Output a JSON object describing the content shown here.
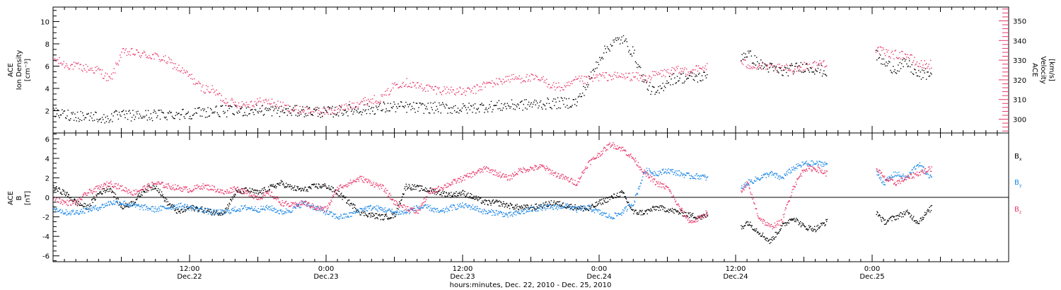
{
  "chart_data": [
    {
      "type": "scatter",
      "panel": "top",
      "ylabel_left": [
        "ACE",
        "Ion Density",
        "[cm⁻³]"
      ],
      "ylabel_right": [
        "ACE",
        "Velocity",
        "[km/s]"
      ],
      "x_range_hours": [
        0,
        84
      ],
      "ylim_left": [
        0,
        11.3
      ],
      "yticks_left": [
        2,
        4,
        6,
        8,
        10
      ],
      "ylim_right": [
        293,
        357
      ],
      "yticks_right": [
        300,
        310,
        320,
        330,
        340,
        350
      ],
      "grid": false,
      "gaps_hours": [
        [
          57.5,
          60.4
        ],
        [
          68.0,
          72.3
        ],
        [
          77.3,
          84
        ]
      ],
      "colors": {
        "density": "#000000",
        "velocity": "#e8376a"
      },
      "series": [
        {
          "name": "Ion Density",
          "axis": "left",
          "color": "#000000",
          "x": [
            0,
            2,
            4,
            4.5,
            5,
            6,
            8,
            10,
            12,
            14,
            16,
            18,
            20,
            22,
            24,
            26,
            28,
            30,
            32,
            34,
            36,
            38,
            40,
            42,
            44,
            46,
            47,
            48,
            49,
            50,
            51,
            52,
            53,
            54,
            55,
            56,
            57.4,
            60.5,
            61,
            62,
            63,
            64,
            65,
            66,
            67,
            67.9,
            72.4,
            73,
            74,
            75,
            76,
            77.2
          ],
          "values": [
            1.8,
            1.6,
            1.5,
            1.2,
            1.5,
            1.6,
            1.6,
            1.7,
            1.8,
            2.0,
            2.0,
            2.1,
            2.0,
            2.0,
            1.9,
            2.1,
            2.2,
            2.4,
            2.3,
            2.3,
            2.2,
            2.4,
            2.5,
            2.6,
            2.7,
            2.8,
            4.5,
            6.8,
            8.0,
            8.5,
            7.2,
            4.5,
            3.5,
            4.8,
            5.0,
            5.0,
            5.1,
            7.0,
            7.2,
            6.2,
            5.9,
            5.5,
            5.8,
            6.0,
            5.8,
            5.5,
            7.0,
            6.3,
            5.8,
            6.3,
            5.2,
            5.4
          ]
        },
        {
          "name": "Velocity",
          "axis": "right",
          "color": "#e8376a",
          "x": [
            0,
            1,
            2,
            3,
            4,
            5,
            6,
            7,
            8,
            9,
            10,
            11,
            12,
            13,
            14,
            15,
            16,
            17,
            18,
            19,
            20,
            21,
            22,
            23,
            24,
            25,
            26,
            27,
            28,
            29,
            30,
            31,
            32,
            33,
            34,
            35,
            36,
            37,
            38,
            39,
            40,
            41,
            42,
            43,
            44,
            45,
            46,
            47,
            48,
            49,
            50,
            51,
            52,
            53,
            54,
            55,
            56,
            57,
            57.4,
            60.5,
            61,
            62,
            63,
            64,
            65,
            66,
            67,
            67.9,
            72.4,
            73,
            74,
            75,
            76,
            77.2
          ],
          "values": [
            331,
            328,
            327,
            326,
            325,
            320,
            334,
            334,
            333,
            332,
            330,
            326,
            322,
            316,
            315,
            310,
            308,
            308,
            309,
            309,
            307,
            305,
            305,
            304,
            304,
            305,
            307,
            309,
            310,
            311,
            318,
            319,
            317,
            316,
            315,
            315,
            314,
            315,
            318,
            319,
            321,
            321,
            321,
            320,
            317,
            316,
            320,
            320,
            322,
            322,
            322,
            322,
            321,
            323,
            324,
            325,
            325,
            326,
            327,
            329,
            328,
            327,
            326,
            326,
            326,
            327,
            328,
            329,
            336,
            334,
            333,
            333,
            328,
            328
          ]
        }
      ]
    },
    {
      "type": "scatter",
      "panel": "bottom",
      "ylabel": [
        "ACE",
        "B",
        "[nT]"
      ],
      "x_range_hours": [
        0,
        84
      ],
      "ylim": [
        -6.6,
        6.6
      ],
      "yticks": [
        -6,
        -4,
        -2,
        0,
        2,
        4,
        6
      ],
      "grid": false,
      "zero_line": true,
      "legend_placement": "right",
      "gaps_hours": [
        [
          57.5,
          60.4
        ],
        [
          68.0,
          72.3
        ],
        [
          77.3,
          84
        ]
      ],
      "series": [
        {
          "name": "Bx",
          "legend_main": "B",
          "legend_sub": "x",
          "color": "#000000",
          "x": [
            0,
            1,
            2,
            3,
            4,
            5,
            6,
            7,
            8,
            9,
            10,
            11,
            12,
            13,
            14,
            15,
            16,
            17,
            18,
            19,
            20,
            21,
            22,
            23,
            24,
            25,
            26,
            27,
            28,
            29,
            30,
            31,
            32,
            33,
            34,
            35,
            36,
            37,
            38,
            39,
            40,
            41,
            42,
            43,
            44,
            45,
            46,
            47,
            48,
            49,
            50,
            51,
            52,
            53,
            54,
            55,
            56,
            57,
            57.4,
            60.5,
            61,
            62,
            63,
            64,
            65,
            66,
            67,
            67.9,
            72.4,
            73,
            74,
            75,
            76,
            77.2
          ],
          "values": [
            1.0,
            0.5,
            -0.5,
            -1.0,
            0.5,
            1.0,
            -1.0,
            -0.5,
            0.8,
            1.2,
            -0.5,
            -1.5,
            -1.0,
            -1.2,
            -1.5,
            -1.5,
            0.5,
            0.8,
            0.5,
            1.0,
            1.5,
            1.0,
            0.8,
            1.2,
            1.2,
            0.5,
            -0.5,
            -1.5,
            -1.8,
            -2.0,
            -1.8,
            1.2,
            1.0,
            0.8,
            0.5,
            0.3,
            0.5,
            0.0,
            -0.5,
            -0.5,
            -0.8,
            -1.0,
            -1.0,
            -0.8,
            -0.5,
            -0.8,
            -1.0,
            -1.2,
            -0.5,
            0.0,
            0.5,
            -1.5,
            -1.5,
            -1.0,
            -1.2,
            -1.5,
            -1.8,
            -2.0,
            -1.8,
            -3.0,
            -2.5,
            -3.5,
            -4.5,
            -3.0,
            -2.0,
            -3.0,
            -3.2,
            -2.5,
            -1.5,
            -2.5,
            -2.0,
            -1.5,
            -2.5,
            -1.0
          ]
        },
        {
          "name": "By",
          "legend_main": "B",
          "legend_sub": "y",
          "color": "#1a86e6",
          "x": [
            0,
            1,
            2,
            3,
            4,
            5,
            6,
            7,
            8,
            9,
            10,
            11,
            12,
            13,
            14,
            15,
            16,
            17,
            18,
            19,
            20,
            21,
            22,
            23,
            24,
            25,
            26,
            27,
            28,
            29,
            30,
            31,
            32,
            33,
            34,
            35,
            36,
            37,
            38,
            39,
            40,
            41,
            42,
            43,
            44,
            45,
            46,
            47,
            48,
            49,
            50,
            51,
            52,
            53,
            54,
            55,
            56,
            57,
            57.4,
            60.5,
            61,
            62,
            63,
            64,
            65,
            66,
            67,
            67.9,
            72.4,
            73,
            74,
            75,
            76,
            77.2
          ],
          "values": [
            -1.0,
            -1.5,
            -1.5,
            -1.2,
            -1.0,
            -0.5,
            -0.5,
            -0.8,
            -1.0,
            -1.2,
            -1.0,
            -0.8,
            -1.0,
            -1.2,
            -1.5,
            -1.5,
            -1.2,
            -1.0,
            -1.2,
            -1.0,
            -1.5,
            -1.2,
            -0.5,
            -1.0,
            -1.5,
            -2.0,
            -1.8,
            -1.2,
            -1.0,
            -1.2,
            -1.5,
            -1.5,
            -1.0,
            -1.0,
            -1.5,
            -1.0,
            -0.8,
            -1.0,
            -1.5,
            -1.5,
            -1.8,
            -1.5,
            -1.2,
            -1.0,
            -1.0,
            -0.8,
            -1.2,
            -1.0,
            -1.5,
            -2.0,
            -1.5,
            -0.5,
            2.8,
            2.5,
            2.8,
            2.5,
            2.2,
            2.2,
            2.0,
            1.0,
            1.5,
            2.0,
            2.5,
            2.0,
            3.0,
            3.5,
            3.5,
            3.5,
            2.5,
            1.5,
            2.5,
            2.0,
            3.5,
            2.0
          ]
        },
        {
          "name": "Bz",
          "legend_main": "B",
          "legend_sub": "z",
          "color": "#e8376a",
          "x": [
            0,
            1,
            2,
            3,
            4,
            5,
            6,
            7,
            8,
            9,
            10,
            11,
            12,
            13,
            14,
            15,
            16,
            17,
            18,
            19,
            20,
            21,
            22,
            23,
            24,
            25,
            26,
            27,
            28,
            29,
            30,
            31,
            32,
            33,
            34,
            35,
            36,
            37,
            38,
            39,
            40,
            41,
            42,
            43,
            44,
            45,
            46,
            47,
            48,
            49,
            50,
            51,
            52,
            53,
            54,
            55,
            56,
            57,
            57.4,
            60.5,
            61,
            62,
            63,
            64,
            65,
            66,
            67,
            67.9,
            72.4,
            73,
            74,
            75,
            76,
            77.2
          ],
          "values": [
            0.0,
            -0.5,
            -0.5,
            0.5,
            1.0,
            1.5,
            1.0,
            0.5,
            1.0,
            1.5,
            1.2,
            1.0,
            0.8,
            1.2,
            1.0,
            0.5,
            1.0,
            0.5,
            0.0,
            0.5,
            -0.5,
            -0.8,
            -0.5,
            -1.0,
            -1.2,
            1.0,
            1.5,
            2.0,
            1.5,
            1.0,
            -0.5,
            -1.0,
            -1.5,
            0.5,
            1.0,
            1.5,
            2.0,
            2.5,
            3.0,
            2.5,
            2.0,
            2.8,
            3.0,
            3.2,
            2.5,
            2.0,
            1.5,
            3.5,
            4.5,
            5.5,
            5.0,
            4.0,
            2.5,
            1.5,
            1.0,
            -1.0,
            -2.5,
            -2.0,
            -1.5,
            0.5,
            1.5,
            -2.0,
            -3.0,
            -2.5,
            1.0,
            3.0,
            3.0,
            2.5,
            3.0,
            2.0,
            1.5,
            2.0,
            2.5,
            3.0
          ]
        }
      ]
    }
  ],
  "x_axis": {
    "tick_labels": [
      {
        "hour": 12,
        "time": "12:00",
        "date": "Dec.22"
      },
      {
        "hour": 24,
        "time": "0:00",
        "date": "Dec.23"
      },
      {
        "hour": 36,
        "time": "12:00",
        "date": "Dec.23"
      },
      {
        "hour": 48,
        "time": "0:00",
        "date": "Dec.24"
      },
      {
        "hour": 60,
        "time": "12:00",
        "date": "Dec.24"
      },
      {
        "hour": 72,
        "time": "0:00",
        "date": "Dec.25"
      }
    ],
    "minor_tick_every_hours": 1,
    "xlabel": "hours:minutes, Dec. 22, 2010 - Dec. 25, 2010"
  }
}
